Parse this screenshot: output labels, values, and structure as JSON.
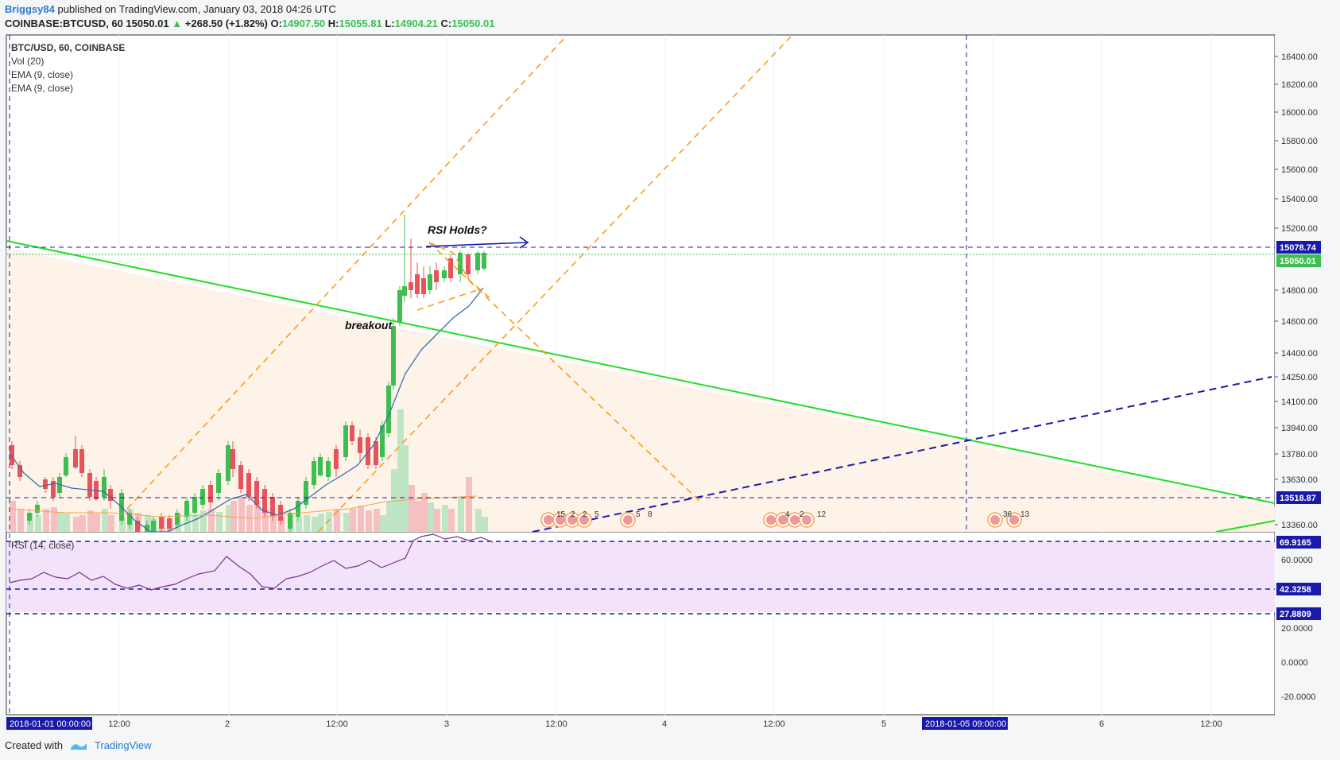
{
  "header": {
    "author": "Briggsy84",
    "published": "published on TradingView.com, January 03, 2018 04:26 UTC",
    "symbol_line": "COINBASE:BTCUSD, 60",
    "last": "15050.01",
    "change": "+268.50 (+1.82%)",
    "o_label": "O:",
    "o": "14907.50",
    "h_label": "H:",
    "h": "15055.81",
    "l_label": "L:",
    "l": "14904.21",
    "c_label": "C:",
    "c": "15050.01"
  },
  "legend": {
    "main": "BTC/USD, 60, COINBASE",
    "vol": "Vol (20)",
    "ema1": "EMA (9, close)",
    "ema2": "EMA (9, close)",
    "rsi": "RSI (14, close)"
  },
  "annotations": {
    "rsi_holds": "RSI Holds?",
    "breakout": "breakout"
  },
  "price_axis": {
    "ticks": [
      "16400.00",
      "16200.00",
      "16000.00",
      "15800.00",
      "15600.00",
      "15400.00",
      "15200.00",
      "14800.00",
      "14600.00",
      "14400.00",
      "14250.00",
      "14100.00",
      "13940.00",
      "13780.00",
      "13630.00",
      "13360.00"
    ],
    "tags": [
      {
        "label": "15078.74",
        "color": "#1a1aa8"
      },
      {
        "label": "15050.01",
        "color": "#3cbf50"
      },
      {
        "label": "13518.87",
        "color": "#1a1aa8"
      }
    ]
  },
  "rsi_axis": {
    "ticks": [
      "60.0000",
      "20.0000",
      "0.0000",
      "-20.0000"
    ],
    "tags": [
      {
        "label": "69.9165",
        "color": "#1a1aa8"
      },
      {
        "label": "42.3258",
        "color": "#1a1aa8"
      },
      {
        "label": "27.8809",
        "color": "#1a1aa8"
      }
    ]
  },
  "time_axis": {
    "ticks": [
      "12:00",
      "2",
      "12:00",
      "3",
      "12:00",
      "4",
      "12:00",
      "5",
      "6",
      "12:00"
    ],
    "tags": [
      "2018-01-01 00:00:00",
      "2018-01-05 09:00:00"
    ]
  },
  "event_labels": [
    "15",
    "2",
    "2",
    "5",
    "5",
    "8",
    "4",
    "2",
    "12",
    "36",
    "13"
  ],
  "footer": {
    "created_with": "Created with",
    "brand": "TradingView"
  },
  "colors": {
    "up": "#3cbf50",
    "down": "#e8525a",
    "trend": "#22dd22",
    "channel": "#ff9a1a",
    "level": "#1a1aa8",
    "ema": "#3a6ea8",
    "rsi_line": "#7b2d8e"
  },
  "chart_data": {
    "type": "candlestick",
    "title": "BTC/USD, 60, COINBASE",
    "interval": "60",
    "y_range": [
      13300,
      16500
    ],
    "rsi_range": [
      -30,
      75
    ],
    "candles": [
      [
        14907.5,
        15055.81,
        14904.21,
        15050.01
      ]
    ]
  }
}
